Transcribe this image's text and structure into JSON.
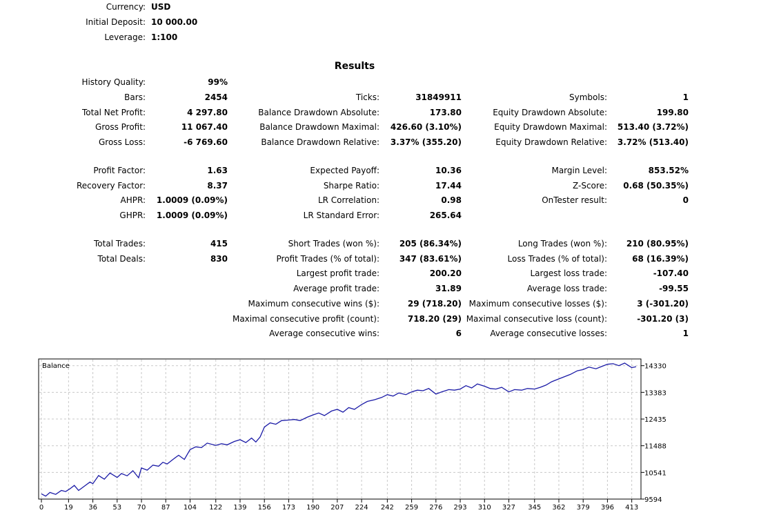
{
  "header": [
    {
      "label": "Currency:",
      "value": "USD"
    },
    {
      "label": "Initial Deposit:",
      "value": "10 000.00"
    },
    {
      "label": "Leverage:",
      "value": "1:100"
    }
  ],
  "results_title": "Results",
  "columns": [
    [
      {
        "label": "History Quality:",
        "value": "99%"
      },
      {
        "label": "Bars:",
        "value": "2454"
      },
      {
        "label": "Total Net Profit:",
        "value": "4 297.80"
      },
      {
        "label": "Gross Profit:",
        "value": "11 067.40"
      },
      {
        "label": "Gross Loss:",
        "value": "-6 769.60"
      },
      null,
      {
        "label": "Profit Factor:",
        "value": "1.63"
      },
      {
        "label": "Recovery Factor:",
        "value": "8.37"
      },
      {
        "label": "AHPR:",
        "value": "1.0009 (0.09%)"
      },
      {
        "label": "GHPR:",
        "value": "1.0009 (0.09%)"
      },
      null,
      {
        "label": "Total Trades:",
        "value": "415"
      },
      {
        "label": "Total Deals:",
        "value": "830"
      }
    ],
    [
      null,
      {
        "label": "Ticks:",
        "value": "31849911"
      },
      {
        "label": "Balance Drawdown Absolute:",
        "value": "173.80"
      },
      {
        "label": "Balance Drawdown Maximal:",
        "value": "426.60 (3.10%)"
      },
      {
        "label": "Balance Drawdown Relative:",
        "value": "3.37% (355.20)"
      },
      null,
      {
        "label": "Expected Payoff:",
        "value": "10.36"
      },
      {
        "label": "Sharpe Ratio:",
        "value": "17.44"
      },
      {
        "label": "LR Correlation:",
        "value": "0.98"
      },
      {
        "label": "LR Standard Error:",
        "value": "265.64"
      },
      null,
      {
        "label": "Short Trades (won %):",
        "value": "205 (86.34%)"
      },
      {
        "label": "Profit Trades (% of total):",
        "value": "347 (83.61%)"
      },
      {
        "label": "Largest profit trade:",
        "value": "200.20"
      },
      {
        "label": "Average profit trade:",
        "value": "31.89"
      },
      {
        "label": "Maximum consecutive wins ($):",
        "value": "29 (718.20)"
      },
      {
        "label": "Maximal consecutive profit (count):",
        "value": "718.20 (29)"
      },
      {
        "label": "Average consecutive wins:",
        "value": "6"
      }
    ],
    [
      null,
      {
        "label": "Symbols:",
        "value": "1"
      },
      {
        "label": "Equity Drawdown Absolute:",
        "value": "199.80"
      },
      {
        "label": "Equity Drawdown Maximal:",
        "value": "513.40 (3.72%)"
      },
      {
        "label": "Equity Drawdown Relative:",
        "value": "3.72% (513.40)"
      },
      null,
      {
        "label": "Margin Level:",
        "value": "853.52%"
      },
      {
        "label": "Z-Score:",
        "value": "0.68 (50.35%)"
      },
      {
        "label": "OnTester result:",
        "value": "0"
      },
      null,
      null,
      {
        "label": "Long Trades (won %):",
        "value": "210 (80.95%)"
      },
      {
        "label": "Loss Trades (% of total):",
        "value": "68 (16.39%)"
      },
      {
        "label": "Largest loss trade:",
        "value": "-107.40"
      },
      {
        "label": "Average loss trade:",
        "value": "-99.55"
      },
      {
        "label": "Maximum consecutive losses ($):",
        "value": "3 (-301.20)"
      },
      {
        "label": "Maximal consecutive loss (count):",
        "value": "-301.20 (3)"
      },
      {
        "label": "Average consecutive losses:",
        "value": "1"
      }
    ]
  ],
  "chart_data": {
    "type": "line",
    "legend": "Balance",
    "line_color": "#1a1aa6",
    "grid": true,
    "x_ticks": [
      0,
      19,
      36,
      53,
      70,
      87,
      104,
      122,
      139,
      156,
      173,
      190,
      207,
      224,
      242,
      259,
      276,
      293,
      310,
      327,
      345,
      362,
      379,
      396,
      413
    ],
    "y_ticks": [
      9594,
      10541,
      11488,
      12435,
      13383,
      14330
    ],
    "xlim": [
      0,
      418
    ],
    "ylim": [
      9594,
      14568
    ],
    "series": [
      {
        "x": [
          0,
          3,
          6,
          10,
          14,
          17,
          20,
          23,
          26,
          30,
          34,
          36,
          40,
          44,
          48,
          53,
          56,
          60,
          64,
          68,
          70,
          74,
          78,
          82,
          85,
          88,
          92,
          96,
          100,
          104,
          108,
          112,
          116,
          122,
          126,
          130,
          135,
          139,
          143,
          147,
          150,
          153,
          156,
          160,
          164,
          168,
          173,
          177,
          181,
          186,
          190,
          194,
          198,
          203,
          207,
          211,
          215,
          219,
          224,
          228,
          233,
          238,
          242,
          246,
          250,
          255,
          259,
          263,
          267,
          271,
          276,
          280,
          285,
          289,
          293,
          297,
          301,
          305,
          310,
          314,
          318,
          322,
          327,
          331,
          336,
          340,
          345,
          349,
          353,
          357,
          362,
          366,
          370,
          375,
          379,
          383,
          388,
          392,
          396,
          400,
          404,
          408,
          413,
          416
        ],
        "y": [
          9780,
          9700,
          9830,
          9760,
          9900,
          9860,
          9960,
          10080,
          9900,
          10050,
          10200,
          10140,
          10430,
          10300,
          10520,
          10360,
          10500,
          10420,
          10600,
          10350,
          10700,
          10620,
          10800,
          10760,
          10900,
          10840,
          11000,
          11150,
          11000,
          11350,
          11450,
          11420,
          11580,
          11500,
          11560,
          11520,
          11640,
          11700,
          11600,
          11760,
          11620,
          11800,
          12150,
          12300,
          12250,
          12380,
          12400,
          12420,
          12380,
          12500,
          12580,
          12650,
          12560,
          12720,
          12780,
          12680,
          12840,
          12780,
          12950,
          13060,
          13120,
          13200,
          13300,
          13250,
          13360,
          13300,
          13400,
          13460,
          13440,
          13520,
          13320,
          13400,
          13480,
          13460,
          13500,
          13620,
          13540,
          13680,
          13600,
          13520,
          13500,
          13560,
          13400,
          13480,
          13460,
          13520,
          13500,
          13560,
          13640,
          13760,
          13860,
          13940,
          14020,
          14150,
          14190,
          14280,
          14220,
          14300,
          14380,
          14400,
          14330,
          14420,
          14260,
          14290
        ]
      }
    ]
  }
}
